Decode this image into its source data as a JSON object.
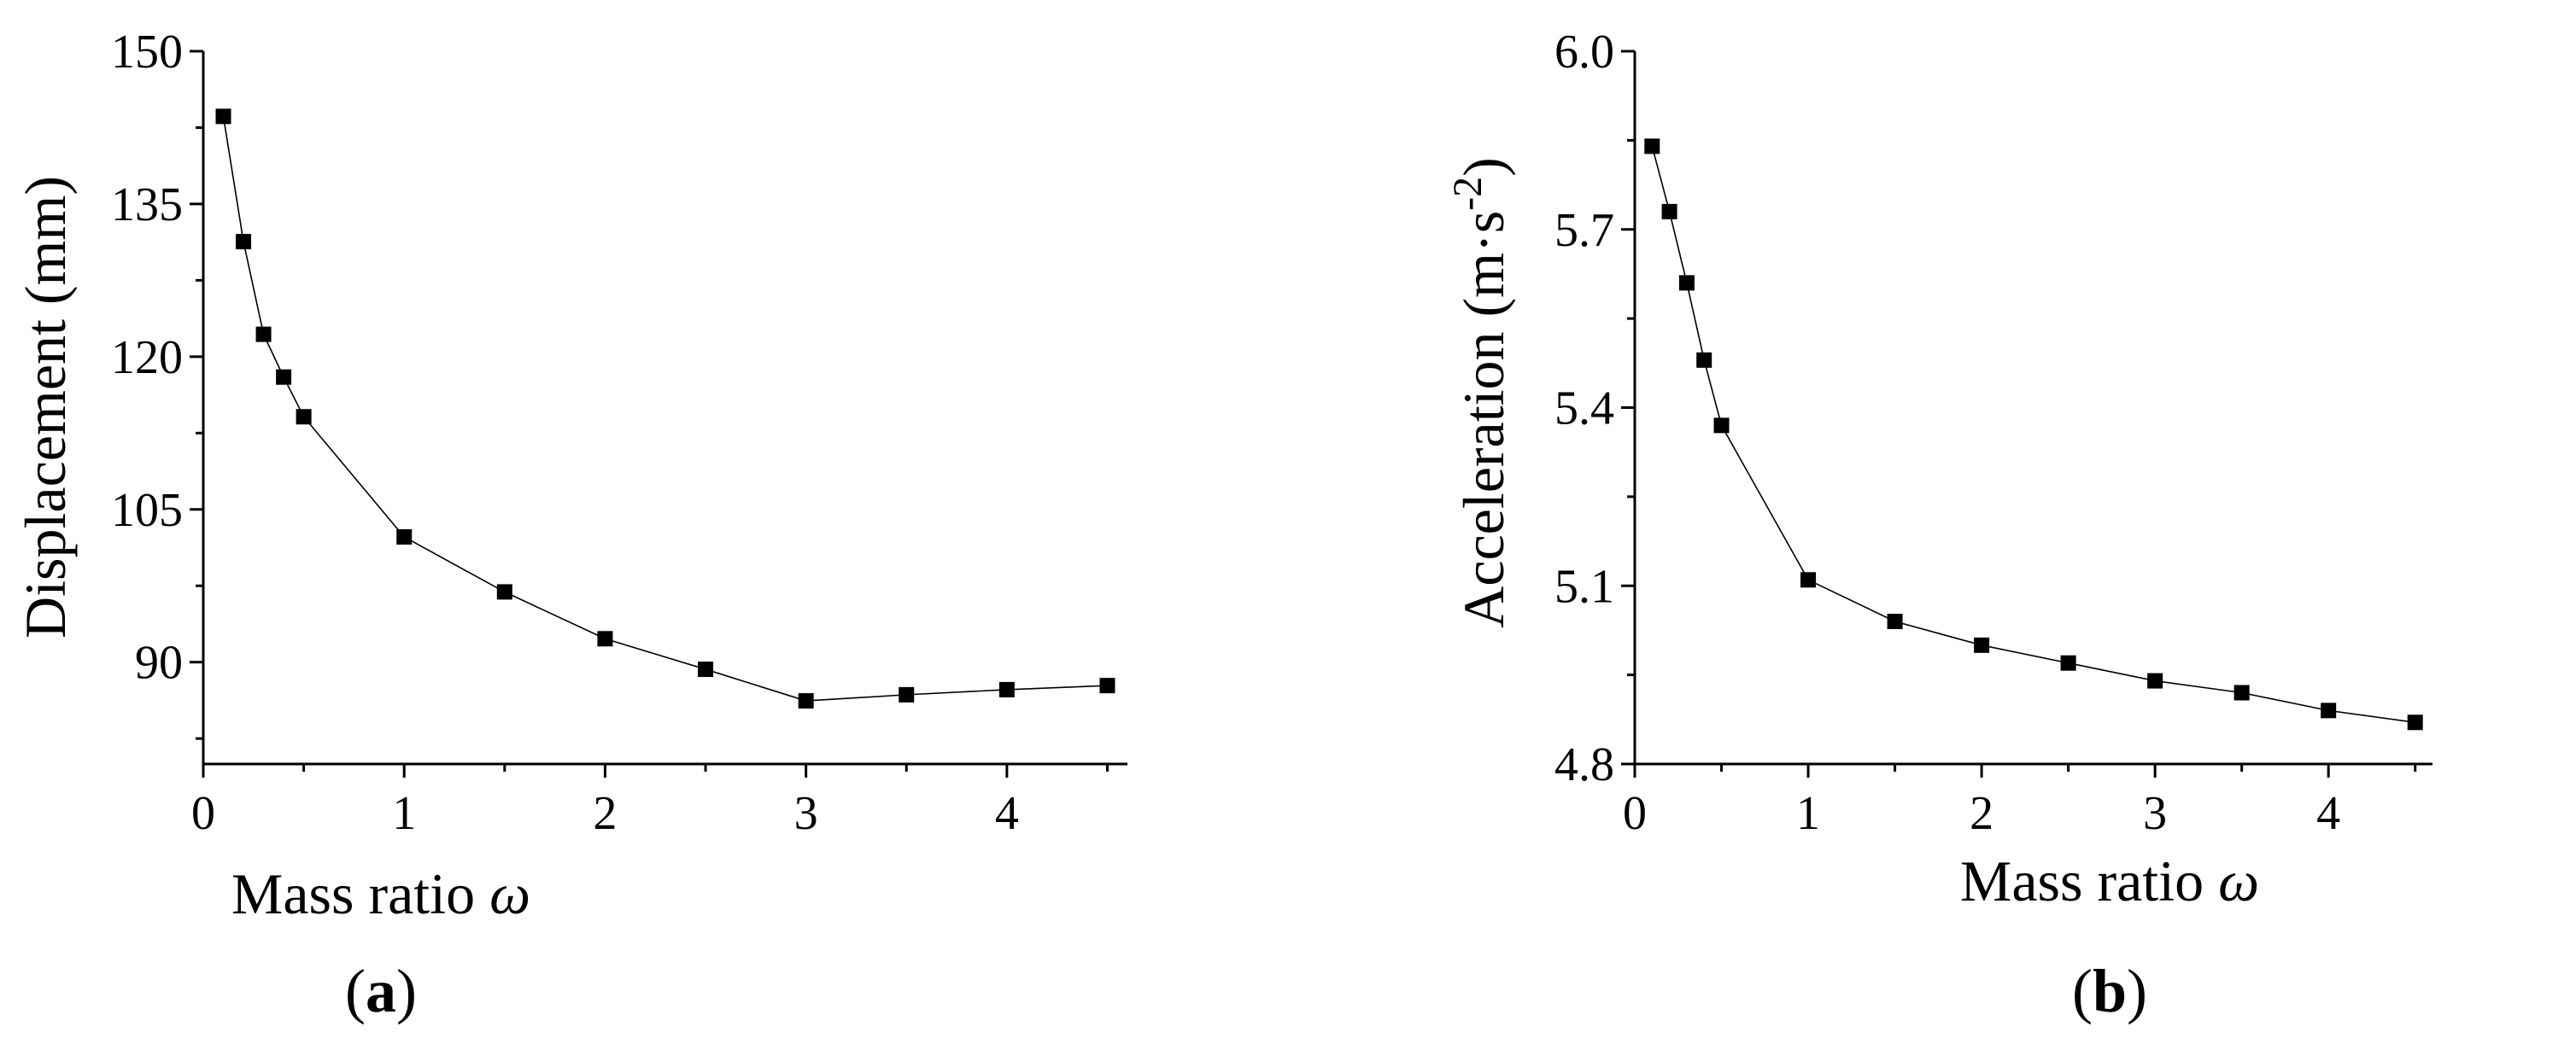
{
  "chart_data": [
    {
      "type": "line",
      "panel_label": "a",
      "xlabel": "Mass ratio",
      "xlabel_symbol": "ω",
      "ylabel": "Displacement (mm)",
      "xlim": [
        0,
        4.6
      ],
      "ylim": [
        80,
        150
      ],
      "xticks": [
        0,
        1,
        2,
        3,
        4
      ],
      "yticks": [
        90,
        105,
        120,
        135,
        150
      ],
      "x": [
        0.1,
        0.2,
        0.3,
        0.4,
        0.5,
        1.0,
        1.5,
        2.0,
        2.5,
        3.0,
        3.5,
        4.0,
        4.5
      ],
      "series": [
        {
          "values": [
            143.6,
            131.3,
            122.2,
            118.0,
            114.1,
            102.3,
            96.9,
            92.3,
            89.3,
            86.2,
            86.8,
            87.3,
            87.7
          ]
        }
      ]
    },
    {
      "type": "line",
      "panel_label": "b",
      "xlabel": "Mass ratio",
      "xlabel_symbol": "ω",
      "ylabel": "Acceleration (m·s",
      "ylabel_sup": "-2",
      "ylabel_end": ")",
      "xlim": [
        0,
        4.6
      ],
      "ylim": [
        4.8,
        6.0
      ],
      "xticks": [
        0,
        1,
        2,
        3,
        4
      ],
      "yticks": [
        4.8,
        5.1,
        5.4,
        5.7,
        6.0
      ],
      "ytick_labels": [
        "4.8",
        "5.1",
        "5.4",
        "5.7",
        "6.0"
      ],
      "x": [
        0.1,
        0.2,
        0.3,
        0.4,
        0.5,
        1.0,
        1.5,
        2.0,
        2.5,
        3.0,
        3.5,
        4.0,
        4.5
      ],
      "series": [
        {
          "values": [
            5.84,
            5.73,
            5.61,
            5.48,
            5.37,
            5.11,
            5.04,
            5.0,
            4.97,
            4.94,
            4.92,
            4.89,
            4.87
          ]
        }
      ]
    }
  ]
}
